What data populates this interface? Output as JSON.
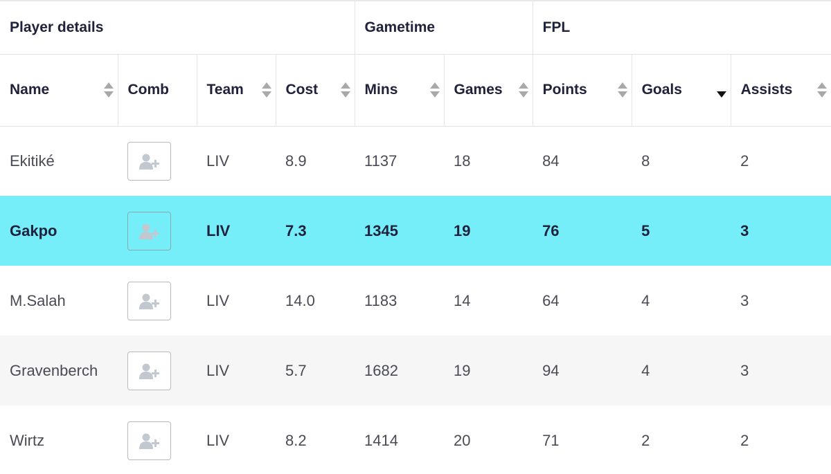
{
  "groups": {
    "player_details": "Player details",
    "gametime": "Gametime",
    "fpl": "FPL"
  },
  "columns": {
    "name": "Name",
    "comb": "Comb",
    "team": "Team",
    "cost": "Cost",
    "mins": "Mins",
    "games": "Games",
    "points": "Points",
    "goals": "Goals",
    "assists": "Assists"
  },
  "sort": {
    "column": "goals",
    "direction": "descending"
  },
  "icons": {
    "comb": "add-user-icon",
    "sort": "sort-arrows-icon"
  },
  "colors": {
    "highlight": "#76eefa",
    "text": "#20213a",
    "alt_row": "#f6f6f6"
  },
  "rows": [
    {
      "name": "Ekitiké",
      "team": "LIV",
      "cost": "8.9",
      "mins": "1137",
      "games": "18",
      "points": "84",
      "goals": "8",
      "assists": "2"
    },
    {
      "name": "Gakpo",
      "team": "LIV",
      "cost": "7.3",
      "mins": "1345",
      "games": "19",
      "points": "76",
      "goals": "5",
      "assists": "3",
      "highlighted": true
    },
    {
      "name": "M.Salah",
      "team": "LIV",
      "cost": "14.0",
      "mins": "1183",
      "games": "14",
      "points": "64",
      "goals": "4",
      "assists": "3"
    },
    {
      "name": "Gravenberch",
      "team": "LIV",
      "cost": "5.7",
      "mins": "1682",
      "games": "19",
      "points": "94",
      "goals": "4",
      "assists": "3"
    },
    {
      "name": "Wirtz",
      "team": "LIV",
      "cost": "8.2",
      "mins": "1414",
      "games": "20",
      "points": "71",
      "goals": "2",
      "assists": "2"
    }
  ]
}
